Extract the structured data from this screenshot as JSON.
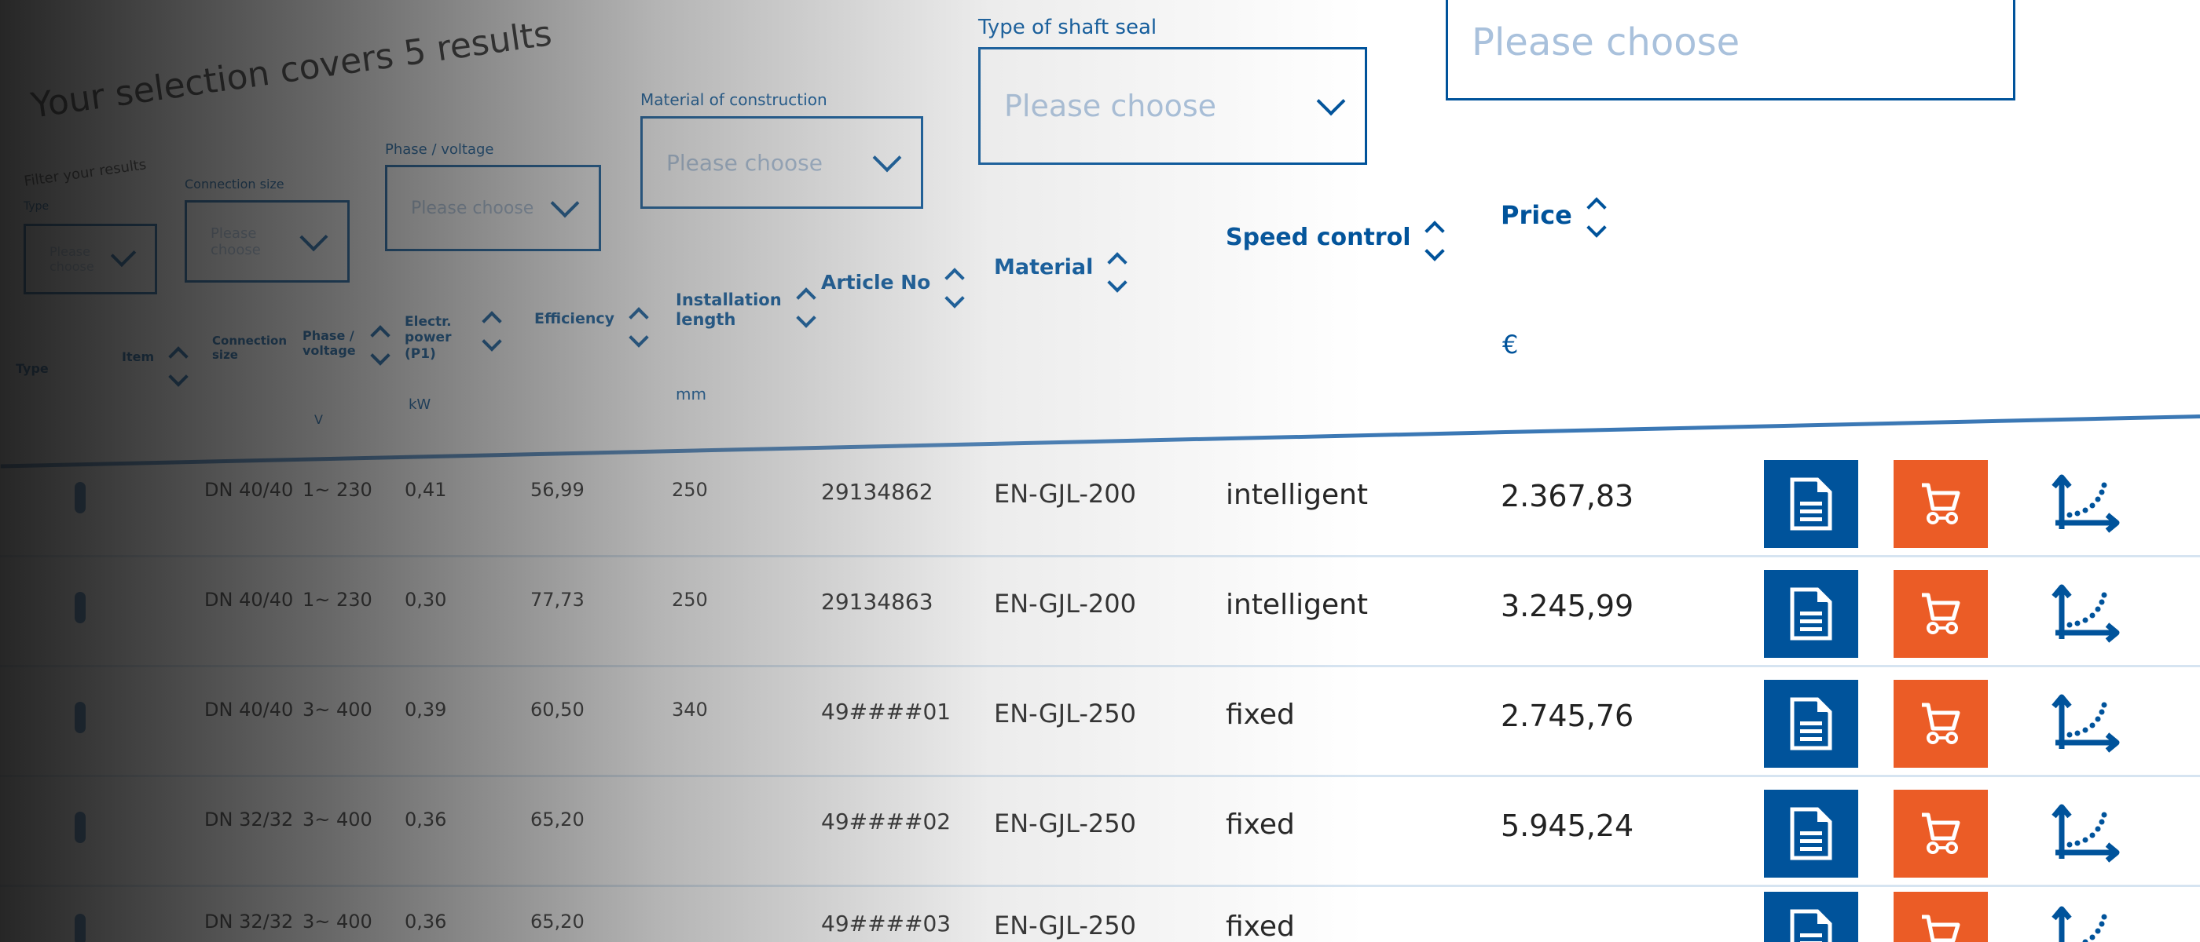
{
  "header": {
    "title": "Your selection covers 5 results",
    "filter_label": "Filter your results"
  },
  "filters": [
    {
      "label": "Type",
      "placeholder": "Please choose"
    },
    {
      "label": "Connection size",
      "placeholder": "Please choose"
    },
    {
      "label": "Phase / voltage",
      "placeholder": "Please choose"
    },
    {
      "label": "Material of construction",
      "placeholder": "Please choose"
    },
    {
      "label": "Type of shaft seal",
      "placeholder": "Please choose"
    },
    {
      "label": "",
      "placeholder": "Please choose"
    }
  ],
  "columns": [
    {
      "label": "Type",
      "unit": ""
    },
    {
      "label": "Item",
      "unit": ""
    },
    {
      "label": "Connection size",
      "unit": ""
    },
    {
      "label": "Phase / voltage",
      "unit": "V"
    },
    {
      "label": "Electr. power (P1)",
      "unit": "kW"
    },
    {
      "label": "Efficiency",
      "unit": ""
    },
    {
      "label": "Installation length",
      "unit": "mm"
    },
    {
      "label": "Article No",
      "unit": ""
    },
    {
      "label": "Material",
      "unit": ""
    },
    {
      "label": "Speed control",
      "unit": ""
    },
    {
      "label": "Price",
      "unit": "€"
    }
  ],
  "rows": [
    {
      "connection": "DN 40/40",
      "voltage": "1~ 230",
      "power": "0,41",
      "efficiency": "56,99",
      "length": "250",
      "article": "29134862",
      "material": "EN-GJL-200",
      "speed": "intelligent",
      "price": "2.367,83"
    },
    {
      "connection": "DN 40/40",
      "voltage": "1~ 230",
      "power": "0,30",
      "efficiency": "77,73",
      "length": "250",
      "article": "29134863",
      "material": "EN-GJL-200",
      "speed": "intelligent",
      "price": "3.245,99"
    },
    {
      "connection": "DN 40/40",
      "voltage": "3~ 400",
      "power": "0,39",
      "efficiency": "60,50",
      "length": "340",
      "article": "49####01",
      "material": "EN-GJL-250",
      "speed": "fixed",
      "price": "2.745,76"
    },
    {
      "connection": "DN 32/32",
      "voltage": "3~ 400",
      "power": "0,36",
      "efficiency": "65,20",
      "length": "",
      "article": "49####02",
      "material": "EN-GJL-250",
      "speed": "fixed",
      "price": "5.945,24"
    },
    {
      "connection": "DN 32/32",
      "voltage": "3~ 400",
      "power": "0,36",
      "efficiency": "65,20",
      "length": "",
      "article": "49####03",
      "material": "EN-GJL-250",
      "speed": "fixed",
      "price": ""
    }
  ],
  "icons": {
    "datasheet": "document-icon",
    "cart": "shopping-cart-icon",
    "curve": "pump-curve-chart-icon",
    "sort": "sort-up-down-icon"
  },
  "colors": {
    "brand_blue": "#00539b",
    "cart_orange": "#eb5c26",
    "placeholder": "#a9c1dc"
  }
}
